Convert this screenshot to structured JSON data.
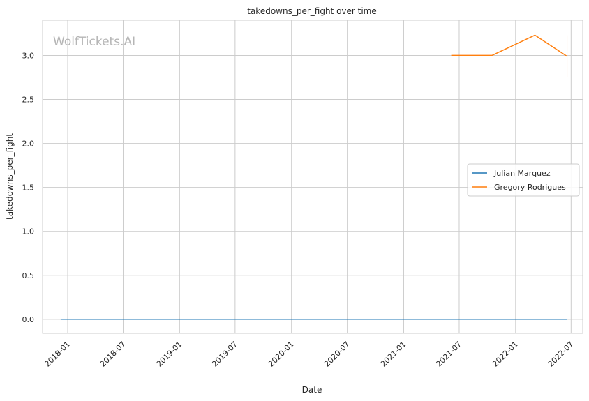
{
  "chart_data": {
    "type": "line",
    "title": "takedowns_per_fight over time",
    "xlabel": "Date",
    "ylabel": "takedowns_per_fight",
    "watermark": "WolfTickets.AI",
    "x_ticks": [
      "2018-01",
      "2018-07",
      "2019-01",
      "2019-07",
      "2020-01",
      "2020-07",
      "2021-01",
      "2021-07",
      "2022-01",
      "2022-07"
    ],
    "y_ticks": [
      "0.0",
      "0.5",
      "1.0",
      "1.5",
      "2.0",
      "2.5",
      "3.0"
    ],
    "xlim": [
      "2017-10-11",
      "2022-08-08"
    ],
    "ylim": [
      -0.16,
      3.4
    ],
    "grid": true,
    "legend_position": "center-right",
    "series": [
      {
        "name": "Julian Marquez",
        "color": "#1f77b4",
        "points": [
          {
            "x": "2017-12-09",
            "y": 0.0
          },
          {
            "x": "2022-06-18",
            "y": 0.0
          }
        ]
      },
      {
        "name": "Gregory Rodrigues",
        "color": "#ff7f0e",
        "points": [
          {
            "x": "2021-06-05",
            "y": 3.0
          },
          {
            "x": "2021-10-16",
            "y": 3.0
          },
          {
            "x": "2022-03-05",
            "y": 3.23
          },
          {
            "x": "2022-06-18",
            "y": 2.99
          }
        ]
      }
    ]
  }
}
